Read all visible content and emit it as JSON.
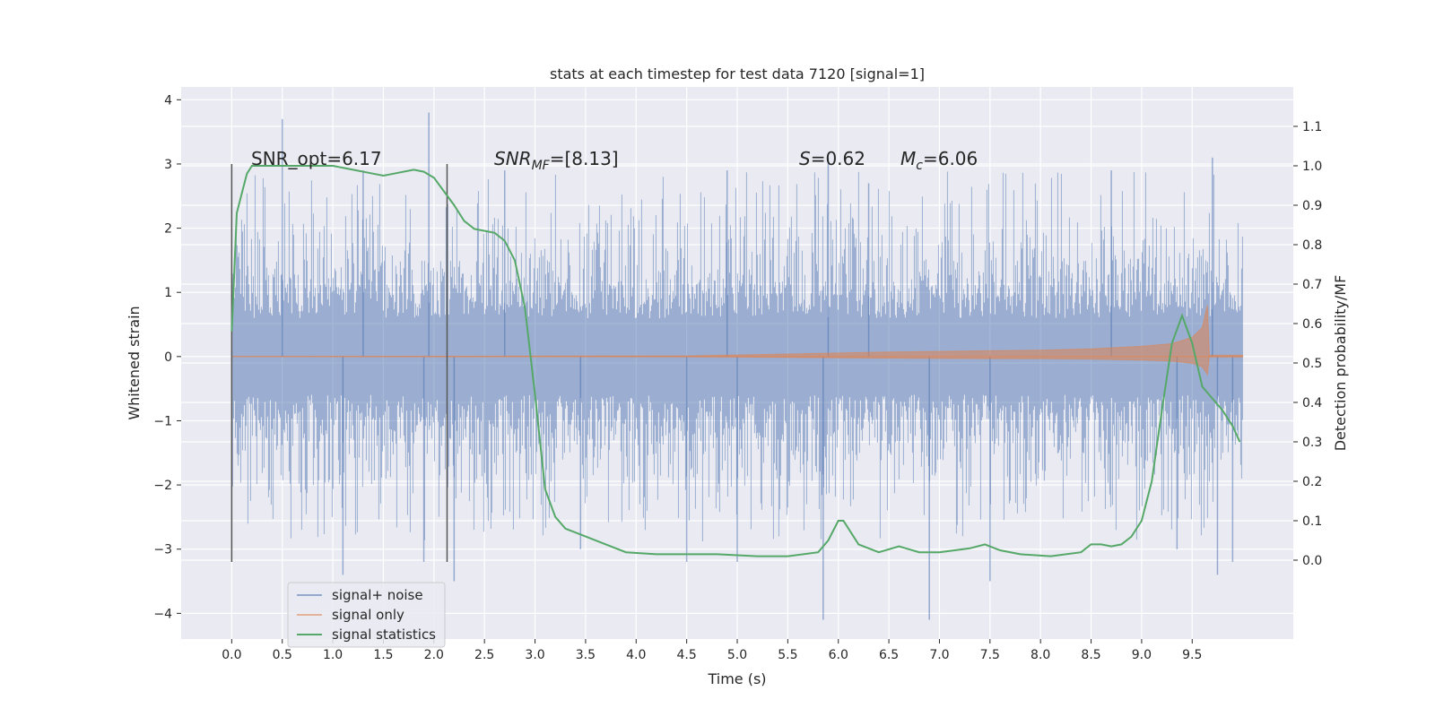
{
  "chart_data": {
    "type": "line",
    "title": "stats at each timestep for test data 7120 [signal=1]",
    "xlabel": "Time (s)",
    "ylabel": "Whitened strain",
    "ylabel_right": "Detection probability/MF",
    "xlim": [
      -0.5,
      10.5
    ],
    "ylim": [
      -4.4,
      4.2
    ],
    "ylim_right": [
      -0.2,
      1.2
    ],
    "x_ticks": [
      0.0,
      0.5,
      1.0,
      1.5,
      2.0,
      2.5,
      3.0,
      3.5,
      4.0,
      4.5,
      5.0,
      5.5,
      6.0,
      6.5,
      7.0,
      7.5,
      8.0,
      8.5,
      9.0,
      9.5
    ],
    "x_tick_labels": [
      "0.0",
      "0.5",
      "1.0",
      "1.5",
      "2.0",
      "2.5",
      "3.0",
      "3.5",
      "4.0",
      "4.5",
      "5.0",
      "5.5",
      "6.0",
      "6.5",
      "7.0",
      "7.5",
      "8.0",
      "8.5",
      "9.0",
      "9.5"
    ],
    "y_ticks": [
      -4,
      -3,
      -2,
      -1,
      0,
      1,
      2,
      3,
      4
    ],
    "y_tick_labels": [
      "−4",
      "−3",
      "−2",
      "−1",
      "0",
      "1",
      "2",
      "3",
      "4"
    ],
    "y_ticks_right": [
      0.0,
      0.1,
      0.2,
      0.3,
      0.4,
      0.5,
      0.6,
      0.7,
      0.8,
      0.9,
      1.0,
      1.1
    ],
    "y_tick_labels_right": [
      "0.0",
      "0.1",
      "0.2",
      "0.3",
      "0.4",
      "0.5",
      "0.6",
      "0.7",
      "0.8",
      "0.9",
      "1.0",
      "1.1"
    ],
    "grid": true,
    "legend_position": "lower-left",
    "legend": [
      {
        "label": "signal+ noise",
        "color": "#4c72b0"
      },
      {
        "label": "signal only",
        "color": "#dd8452"
      },
      {
        "label": "signal statistics",
        "color": "#55a868"
      }
    ],
    "annotations": [
      {
        "x": 0.2,
        "y": 3.0,
        "text": "SNR_opt=6.17"
      },
      {
        "x": 2.6,
        "y": 3.0,
        "text_main": "SNR",
        "text_sub": "MF",
        "text_rest": "=[8.13]"
      },
      {
        "x": 5.6,
        "y": 3.0,
        "text_main": "S",
        "text_sub": "",
        "text_rest": "=0.62"
      },
      {
        "x": 6.6,
        "y": 3.0,
        "text_main": "M",
        "text_sub": "c",
        "text_rest": "=6.06"
      }
    ],
    "vertical_markers": [
      {
        "x": 0.0,
        "y_range": [
          -3.2,
          3.0
        ]
      },
      {
        "x": 2.13,
        "y_range": [
          -3.2,
          3.0
        ]
      }
    ],
    "series": [
      {
        "name": "signal+ noise",
        "color": "#4c72b0",
        "x_range": [
          0.0,
          10.0
        ],
        "typical_extent": [
          -1.7,
          1.7
        ],
        "spikes": [
          [
            0.5,
            3.7
          ],
          [
            1.1,
            -3.4
          ],
          [
            1.9,
            -3.2
          ],
          [
            1.95,
            3.8
          ],
          [
            2.2,
            -3.5
          ],
          [
            3.45,
            -3.0
          ],
          [
            4.5,
            -3.2
          ],
          [
            5.0,
            -3.2
          ],
          [
            5.85,
            -4.1
          ],
          [
            5.9,
            3.1
          ],
          [
            6.9,
            -4.1
          ],
          [
            7.5,
            -3.5
          ],
          [
            9.35,
            -3.0
          ],
          [
            9.7,
            3.1
          ],
          [
            9.75,
            -3.4
          ],
          [
            9.9,
            -3.2
          ],
          [
            1.3,
            2.9
          ],
          [
            2.7,
            2.9
          ],
          [
            4.9,
            2.9
          ],
          [
            6.3,
            2.7
          ],
          [
            8.7,
            2.9
          ]
        ]
      },
      {
        "name": "signal only",
        "color": "#dd8452",
        "x": [
          0.0,
          4.5,
          5.5,
          6.5,
          7.5,
          8.0,
          8.5,
          9.0,
          9.3,
          9.5,
          9.6,
          9.65,
          9.67,
          10.0
        ],
        "amplitude": [
          0.0,
          0.01,
          0.04,
          0.07,
          0.09,
          0.1,
          0.12,
          0.16,
          0.2,
          0.3,
          0.45,
          0.8,
          0.02,
          0.02
        ]
      },
      {
        "name": "signal statistics",
        "color": "#55a868",
        "x": [
          0.0,
          0.05,
          0.1,
          0.15,
          0.2,
          0.3,
          0.5,
          1.0,
          1.2,
          1.4,
          1.5,
          1.6,
          1.8,
          1.9,
          2.0,
          2.1,
          2.2,
          2.3,
          2.4,
          2.6,
          2.7,
          2.8,
          2.9,
          3.0,
          3.1,
          3.2,
          3.3,
          3.5,
          3.7,
          3.9,
          4.2,
          4.5,
          4.8,
          5.2,
          5.5,
          5.8,
          5.9,
          6.0,
          6.05,
          6.2,
          6.4,
          6.6,
          6.8,
          7.0,
          7.3,
          7.45,
          7.6,
          7.8,
          8.1,
          8.4,
          8.5,
          8.6,
          8.7,
          8.8,
          8.9,
          9.0,
          9.1,
          9.2,
          9.3,
          9.4,
          9.5,
          9.6,
          9.7,
          9.8,
          9.9,
          9.97
        ],
        "y": [
          0.58,
          0.88,
          0.93,
          0.98,
          1.0,
          1.0,
          1.0,
          1.0,
          0.99,
          0.98,
          0.975,
          0.98,
          0.99,
          0.985,
          0.97,
          0.935,
          0.9,
          0.86,
          0.84,
          0.83,
          0.81,
          0.76,
          0.64,
          0.42,
          0.18,
          0.11,
          0.08,
          0.06,
          0.04,
          0.02,
          0.015,
          0.015,
          0.015,
          0.01,
          0.01,
          0.02,
          0.05,
          0.1,
          0.1,
          0.04,
          0.02,
          0.035,
          0.02,
          0.02,
          0.03,
          0.04,
          0.025,
          0.015,
          0.01,
          0.02,
          0.04,
          0.04,
          0.035,
          0.04,
          0.06,
          0.1,
          0.2,
          0.38,
          0.55,
          0.62,
          0.55,
          0.44,
          0.41,
          0.38,
          0.34,
          0.3
        ]
      }
    ]
  }
}
